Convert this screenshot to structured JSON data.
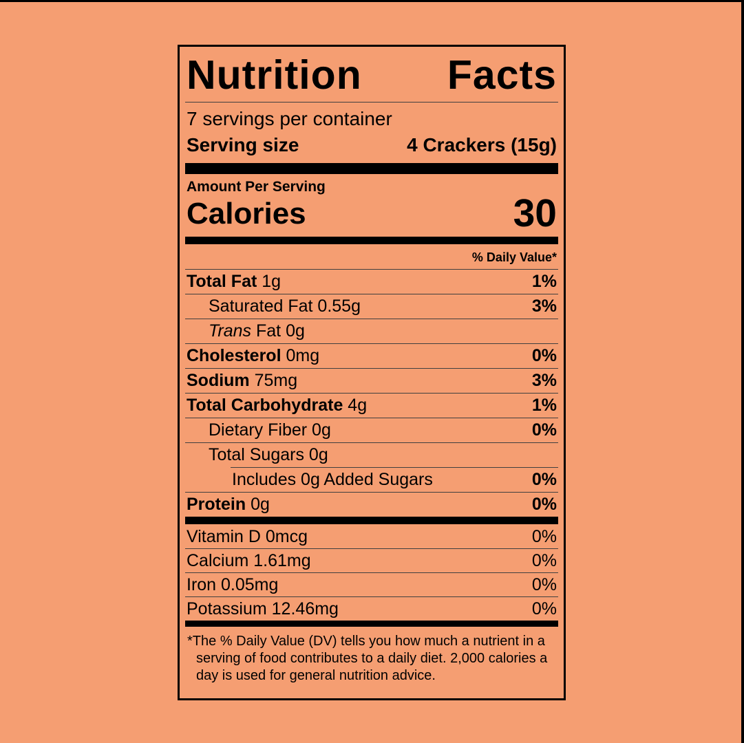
{
  "colors": {
    "background": "#F59E72",
    "ink": "#000000",
    "rule": "#3f3f3f"
  },
  "label": {
    "title_word1": "Nutrition",
    "title_word2": "Facts",
    "servings_per_container": "7 servings per container",
    "serving_size_label": "Serving size",
    "serving_size_value": "4 Crackers (15g)",
    "amount_per_serving": "Amount Per Serving",
    "calories_label": "Calories",
    "calories_value": "30",
    "daily_value_header": "% Daily Value*",
    "nutrients": [
      {
        "strong": "Total Fat",
        "rest": " 1g",
        "dv": "1%"
      },
      {
        "rest": "Saturated Fat 0.55g",
        "dv": "3%"
      },
      {
        "italic": "Trans",
        "rest": " Fat 0g",
        "dv": ""
      },
      {
        "strong": "Cholesterol",
        "rest": " 0mg",
        "dv": "0%"
      },
      {
        "strong": "Sodium",
        "rest": " 75mg",
        "dv": "3%"
      },
      {
        "strong": "Total Carbohydrate",
        "rest": " 4g",
        "dv": "1%"
      },
      {
        "rest": "Dietary Fiber 0g",
        "dv": "0%"
      },
      {
        "rest": "Total Sugars 0g",
        "dv": ""
      },
      {
        "rest": "Includes 0g Added Sugars",
        "dv": "0%"
      },
      {
        "strong": "Protein",
        "rest": " 0g",
        "dv": "0%"
      }
    ],
    "vitamins": [
      {
        "text": "Vitamin D 0mcg",
        "dv": "0%"
      },
      {
        "text": "Calcium 1.61mg",
        "dv": "0%"
      },
      {
        "text": "Iron 0.05mg",
        "dv": "0%"
      },
      {
        "text": "Potassium 12.46mg",
        "dv": "0%"
      }
    ],
    "footnote_marker": "*",
    "footnote": "The % Daily Value (DV) tells you how much a nutrient in a serving of food contributes to a daily diet. 2,000 calories a day is used for general nutrition advice."
  }
}
